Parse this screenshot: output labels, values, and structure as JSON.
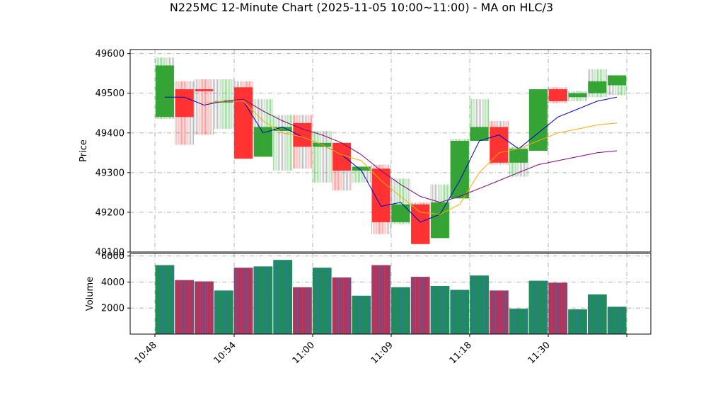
{
  "chart_data": {
    "type": "candlestick",
    "title": "N225MC 12-Minute Chart (2025-11-05 10:00~11:00) - MA on HLC/3",
    "x_tick_labels": [
      "10:48",
      "10:54",
      "11:00",
      "11:09",
      "11:18",
      "11:30",
      ""
    ],
    "price_panel": {
      "ylabel": "Price",
      "ylim": [
        49100,
        49610
      ],
      "yticks": [
        49100,
        49200,
        49300,
        49400,
        49500,
        49600
      ],
      "candles": [
        {
          "open": 49440,
          "high": 49590,
          "low": 49435,
          "close": 49570
        },
        {
          "open": 49510,
          "high": 49530,
          "low": 49370,
          "close": 49440
        },
        {
          "open": 49510,
          "high": 49535,
          "low": 49395,
          "close": 49505
        },
        {
          "open": 49480,
          "high": 49535,
          "low": 49410,
          "close": 49480
        },
        {
          "open": 49515,
          "high": 49530,
          "low": 49335,
          "close": 49335
        },
        {
          "open": 49340,
          "high": 49485,
          "low": 49340,
          "close": 49415
        },
        {
          "open": 49405,
          "high": 49445,
          "low": 49305,
          "close": 49415
        },
        {
          "open": 49425,
          "high": 49445,
          "low": 49310,
          "close": 49365
        },
        {
          "open": 49365,
          "high": 49405,
          "low": 49275,
          "close": 49375
        },
        {
          "open": 49375,
          "high": 49375,
          "low": 49255,
          "close": 49305
        },
        {
          "open": 49305,
          "high": 49315,
          "low": 49275,
          "close": 49315
        },
        {
          "open": 49310,
          "high": 49320,
          "low": 49145,
          "close": 49175
        },
        {
          "open": 49175,
          "high": 49285,
          "low": 49170,
          "close": 49220
        },
        {
          "open": 49220,
          "high": 49225,
          "low": 49120,
          "close": 49120
        },
        {
          "open": 49135,
          "high": 49270,
          "low": 49135,
          "close": 49225
        },
        {
          "open": 49235,
          "high": 49385,
          "low": 49235,
          "close": 49380
        },
        {
          "open": 49380,
          "high": 49485,
          "low": 49380,
          "close": 49415
        },
        {
          "open": 49415,
          "high": 49430,
          "low": 49320,
          "close": 49325
        },
        {
          "open": 49325,
          "high": 49365,
          "low": 49290,
          "close": 49360
        },
        {
          "open": 49355,
          "high": 49510,
          "low": 49355,
          "close": 49510
        },
        {
          "open": 49510,
          "high": 49515,
          "low": 49475,
          "close": 49480
        },
        {
          "open": 49490,
          "high": 49505,
          "low": 49480,
          "close": 49500
        },
        {
          "open": 49500,
          "high": 49560,
          "low": 49490,
          "close": 49530
        },
        {
          "open": 49520,
          "high": 49545,
          "low": 49495,
          "close": 49545
        }
      ],
      "ma_series": [
        {
          "color": "#0000cc",
          "values": [
            49490,
            49490,
            49470,
            49480,
            49480,
            49400,
            49415,
            49390,
            49370,
            49345,
            49305,
            49215,
            49225,
            49175,
            49195,
            49280,
            49380,
            49395,
            49360,
            49400,
            49440,
            49460,
            49480,
            49490
          ]
        },
        {
          "color": "#ffaa00",
          "values": [
            null,
            null,
            49475,
            49480,
            49480,
            49430,
            49400,
            49390,
            49370,
            49345,
            49330,
            49280,
            49240,
            49200,
            49195,
            49220,
            49300,
            49350,
            49360,
            49380,
            49400,
            49410,
            49420,
            49425
          ]
        },
        {
          "color": "#800080",
          "values": [
            null,
            null,
            null,
            49480,
            49485,
            49455,
            49430,
            49410,
            49395,
            49375,
            49345,
            49305,
            49270,
            49240,
            49225,
            49240,
            49260,
            49280,
            49300,
            49320,
            49330,
            49340,
            49350,
            49355
          ]
        }
      ]
    },
    "volume_panel": {
      "ylabel": "Volume",
      "ylim": [
        0,
        6200
      ],
      "yticks": [
        2000,
        4000,
        6000
      ],
      "values": [
        5300,
        4150,
        4050,
        3350,
        5100,
        5200,
        5700,
        3600,
        5100,
        4350,
        2950,
        5300,
        3600,
        4400,
        3700,
        3400,
        4500,
        3350,
        1950,
        4100,
        3950,
        1900,
        3050,
        2100
      ]
    },
    "grid": true,
    "colors": {
      "up": "#2ca02c",
      "down": "#ff2a2a",
      "grid": "#b0b0b0"
    }
  }
}
